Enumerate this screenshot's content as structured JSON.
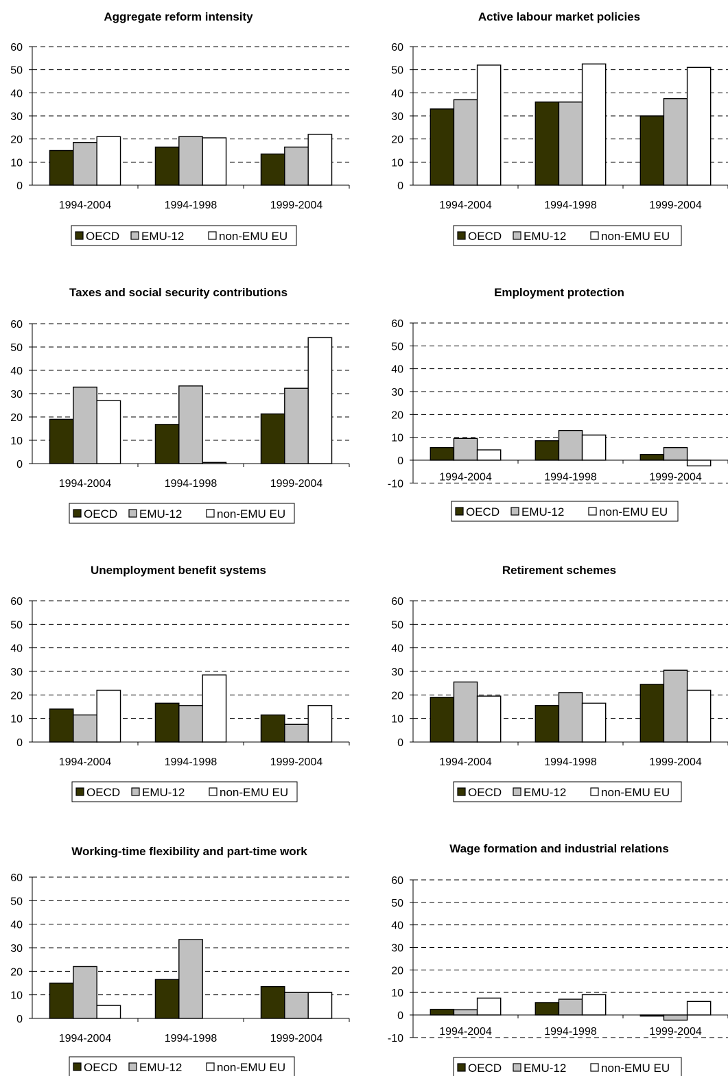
{
  "colors": {
    "OECD": "#333300",
    "EMU-12": "#c0c0c0",
    "non-EMU EU": "#ffffff"
  },
  "legend": [
    "OECD",
    "EMU-12",
    "non-EMU EU"
  ],
  "chart_data": [
    {
      "type": "bar",
      "title": "Aggregate reform intensity",
      "categories": [
        "1994-2004",
        "1994-1998",
        "1999-2004"
      ],
      "ylim": [
        0,
        60
      ],
      "ticks": [
        0,
        10,
        20,
        30,
        40,
        50,
        60
      ],
      "legend": "bottom",
      "grid": true,
      "series": [
        {
          "name": "OECD",
          "values": [
            15,
            16.5,
            13.5
          ]
        },
        {
          "name": "EMU-12",
          "values": [
            18.5,
            21,
            16.5
          ]
        },
        {
          "name": "non-EMU EU",
          "values": [
            21,
            20.5,
            22
          ]
        }
      ]
    },
    {
      "type": "bar",
      "title": "Active labour market policies",
      "categories": [
        "1994-2004",
        "1994-1998",
        "1999-2004"
      ],
      "ylim": [
        0,
        60
      ],
      "ticks": [
        0,
        10,
        20,
        30,
        40,
        50,
        60
      ],
      "legend": "bottom",
      "grid": true,
      "series": [
        {
          "name": "OECD",
          "values": [
            33,
            36,
            30
          ]
        },
        {
          "name": "EMU-12",
          "values": [
            37,
            36,
            37.5
          ]
        },
        {
          "name": "non-EMU EU",
          "values": [
            52,
            52.5,
            51
          ]
        }
      ]
    },
    {
      "type": "bar",
      "title": "Taxes and social security contributions",
      "categories": [
        "1994-2004",
        "1994-1998",
        "1999-2004"
      ],
      "ylim": [
        0,
        60
      ],
      "ticks": [
        0,
        10,
        20,
        30,
        40,
        50,
        60
      ],
      "legend": "bottom",
      "grid": true,
      "series": [
        {
          "name": "OECD",
          "values": [
            19,
            16.8,
            21.3
          ]
        },
        {
          "name": "EMU-12",
          "values": [
            32.8,
            33.3,
            32.3
          ]
        },
        {
          "name": "non-EMU EU",
          "values": [
            27,
            0.5,
            54
          ]
        }
      ]
    },
    {
      "type": "bar",
      "title": "Employment protection",
      "categories": [
        "1994-2004",
        "1994-1998",
        "1999-2004"
      ],
      "ylim": [
        -10,
        60
      ],
      "ticks": [
        -10,
        0,
        10,
        20,
        30,
        40,
        50,
        60
      ],
      "legend": "bottom",
      "grid": true,
      "series": [
        {
          "name": "OECD",
          "values": [
            5.5,
            8.5,
            2.5
          ]
        },
        {
          "name": "EMU-12",
          "values": [
            9.5,
            13,
            5.5
          ]
        },
        {
          "name": "non-EMU EU",
          "values": [
            4.5,
            11,
            -2.5
          ]
        }
      ]
    },
    {
      "type": "bar",
      "title": "Unemployment benefit systems",
      "categories": [
        "1994-2004",
        "1994-1998",
        "1999-2004"
      ],
      "ylim": [
        0,
        60
      ],
      "ticks": [
        0,
        10,
        20,
        30,
        40,
        50,
        60
      ],
      "legend": "bottom",
      "grid": true,
      "series": [
        {
          "name": "OECD",
          "values": [
            14,
            16.5,
            11.5
          ]
        },
        {
          "name": "EMU-12",
          "values": [
            11.5,
            15.5,
            7.5
          ]
        },
        {
          "name": "non-EMU EU",
          "values": [
            22,
            28.5,
            15.5
          ]
        }
      ]
    },
    {
      "type": "bar",
      "title": "Retirement schemes",
      "categories": [
        "1994-2004",
        "1994-1998",
        "1999-2004"
      ],
      "ylim": [
        0,
        60
      ],
      "ticks": [
        0,
        10,
        20,
        30,
        40,
        50,
        60
      ],
      "legend": "bottom",
      "grid": true,
      "series": [
        {
          "name": "OECD",
          "values": [
            19,
            15.5,
            24.5
          ]
        },
        {
          "name": "EMU-12",
          "values": [
            25.5,
            21,
            30.5
          ]
        },
        {
          "name": "non-EMU EU",
          "values": [
            19.5,
            16.5,
            22
          ]
        }
      ]
    },
    {
      "type": "bar",
      "title": "Working-time flexibility and part-time work",
      "categories": [
        "1994-2004",
        "1994-1998",
        "1999-2004"
      ],
      "ylim": [
        0,
        60
      ],
      "ticks": [
        0,
        10,
        20,
        30,
        40,
        50,
        60
      ],
      "legend": "bottom",
      "grid": true,
      "series": [
        {
          "name": "OECD",
          "values": [
            15,
            16.5,
            13.5
          ]
        },
        {
          "name": "EMU-12",
          "values": [
            22,
            33.5,
            11
          ]
        },
        {
          "name": "non-EMU EU",
          "values": [
            5.5,
            0,
            11
          ]
        }
      ]
    },
    {
      "type": "bar",
      "title": "Wage formation and industrial relations",
      "categories": [
        "1994-2004",
        "1994-1998",
        "1999-2004"
      ],
      "ylim": [
        -10,
        60
      ],
      "ticks": [
        -10,
        0,
        10,
        20,
        30,
        40,
        50,
        60
      ],
      "legend": "bottom",
      "grid": true,
      "series": [
        {
          "name": "OECD",
          "values": [
            2.5,
            5.5,
            -0.5
          ]
        },
        {
          "name": "EMU-12",
          "values": [
            2.3,
            7,
            -2.3
          ]
        },
        {
          "name": "non-EMU EU",
          "values": [
            7.5,
            9,
            6
          ]
        }
      ]
    }
  ]
}
